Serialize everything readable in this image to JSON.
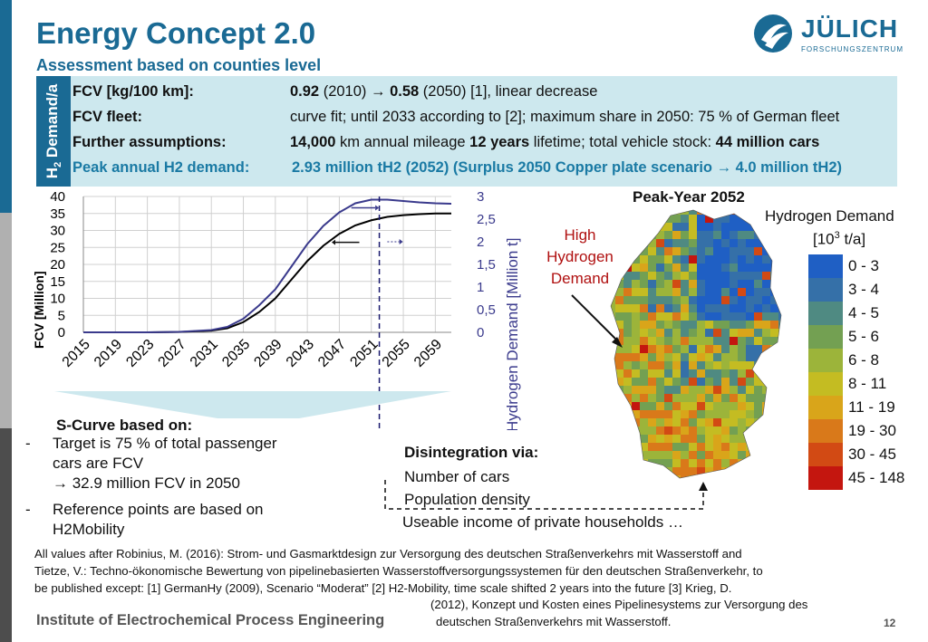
{
  "header": {
    "title": "Energy Concept 2.0",
    "subtitle": "Assessment based on counties level",
    "logo_text": "JÜLICH",
    "logo_sub": "FORSCHUNGSZENTRUM"
  },
  "assumptions": {
    "side_tab": "H2 Demand/a",
    "rows": [
      {
        "label": "FCV [kg/100 km]:",
        "v1": "0.92",
        "v2": " (2010) → ",
        "v3": "0.58",
        "v4": " (2050) [1], linear decrease"
      },
      {
        "label": "FCV fleet:",
        "value": "curve fit; until 2033 according to [2]; maximum share in 2050: 75 % of German fleet"
      },
      {
        "label": "Further assumptions:",
        "v1": "14,000",
        "v2": " km annual mileage ",
        "v3": "12 years",
        "v4": " lifetime; total vehicle stock: ",
        "v5": "44 million cars"
      },
      {
        "label": "Peak annual H2 demand:",
        "value": "2.93 million tH2 (2052)   (Surplus 2050 Copper plate  scenario → 4.0 million tH2)"
      }
    ]
  },
  "chart_data": {
    "type": "line",
    "x": [
      2015,
      2019,
      2023,
      2027,
      2031,
      2033,
      2035,
      2037,
      2039,
      2041,
      2043,
      2045,
      2047,
      2049,
      2051,
      2053,
      2055,
      2057,
      2059,
      2061
    ],
    "x_tick_labels": [
      "2015",
      "2019",
      "2023",
      "2027",
      "2031",
      "2035",
      "2039",
      "2043",
      "2047",
      "2051",
      "2055",
      "2059"
    ],
    "ylabel": "FCV [Million]",
    "y2label": "Hydrogen Demand [Million t]",
    "ylim": [
      0,
      40
    ],
    "y2lim": [
      0,
      3
    ],
    "y_ticks": [
      "0",
      "5",
      "10",
      "15",
      "20",
      "25",
      "30",
      "35",
      "40"
    ],
    "y2_ticks": [
      "0",
      "0,5",
      "1",
      "1,5",
      "2",
      "2,5",
      "3"
    ],
    "grid": true,
    "marker_year": 2052,
    "series": [
      {
        "axis": "left",
        "color": "#000000",
        "values": [
          0,
          0,
          0,
          0.1,
          0.5,
          1.2,
          3,
          6,
          10,
          15.5,
          21,
          25.5,
          29,
          31.5,
          33,
          34,
          34.5,
          34.8,
          35,
          35
        ]
      },
      {
        "axis": "right",
        "color": "#3a3a8c",
        "values": [
          0,
          0,
          0,
          0.01,
          0.05,
          0.12,
          0.3,
          0.6,
          0.95,
          1.45,
          1.95,
          2.35,
          2.65,
          2.85,
          2.93,
          2.93,
          2.9,
          2.87,
          2.85,
          2.84
        ]
      }
    ]
  },
  "scurve": {
    "title": "S-Curve based on:",
    "bullet1a": "Target is 75 % of total passenger",
    "bullet1b": "cars are FCV",
    "bullet1c": "→ 32.9 million FCV in 2050",
    "bullet2a": "Reference points are based on",
    "bullet2b": "H2Mobility"
  },
  "disintegration": {
    "title": "Disintegration via:",
    "items": [
      "Number of cars",
      "Population density",
      "Useable income of private households …"
    ]
  },
  "map": {
    "title": "Peak-Year 2052",
    "high_label": [
      "High",
      "Hydrogen",
      "Demand"
    ],
    "legend_title": "Hydrogen  Demand",
    "legend_unit": "[10³ t/a]",
    "legend": [
      {
        "label": "0 - 3",
        "color": "#1f5fc4"
      },
      {
        "label": "3 - 4",
        "color": "#3570a8"
      },
      {
        "label": "4 - 5",
        "color": "#4f8a82"
      },
      {
        "label": "5 - 6",
        "color": "#73a052"
      },
      {
        "label": "6 - 8",
        "color": "#9cb43a"
      },
      {
        "label": "8 - 11",
        "color": "#c4bc22"
      },
      {
        "label": "11 - 19",
        "color": "#d9a51a"
      },
      {
        "label": "19 - 30",
        "color": "#d9791a"
      },
      {
        "label": "30 - 45",
        "color": "#d24a14"
      },
      {
        "label": "45 - 148",
        "color": "#c4160f"
      }
    ]
  },
  "footer": {
    "source_line1": "All values after Robinius, M. (2016): Strom- und Gasmarktdesign zur Versorgung des deutschen Straßenverkehrs mit Wasserstoff and",
    "source_line2": "Tietze, V.: Techno-ökonomische Bewertung von pipelinebasierten Wasserstoffversorgungssystemen für den deutschen Straßenverkehr, to",
    "source_line3": "be published except: [1] GermanHy (2009), Scenario “Moderat”  [2] H2-Mobility, time scale shifted 2 years into the future [3] Krieg, D.",
    "source_line4": "(2012), Konzept und Kosten eines Pipelinesystems zur Versorgung des",
    "source_line5": "deutschen Straßenverkehrs mit Wasserstoff.",
    "institute": "Institute of Electrochemical Process Engineering",
    "page": "12"
  }
}
